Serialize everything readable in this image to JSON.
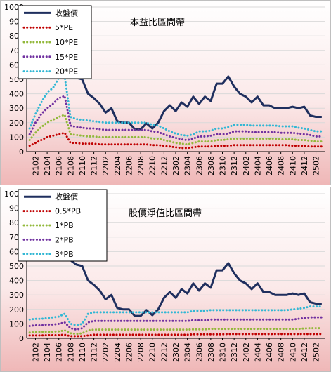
{
  "chart_data": [
    {
      "type": "line",
      "title": "本益比區間帶",
      "ylim": [
        0,
        1000
      ],
      "yticks": [
        "0",
        "100",
        "200",
        "300",
        "400",
        "500",
        "600",
        "700",
        "800",
        "900",
        "1000"
      ],
      "xticks": [
        "2102",
        "2104",
        "2106",
        "2108",
        "2110",
        "2112",
        "2202",
        "2204",
        "2206",
        "2208",
        "2210",
        "2212",
        "2302",
        "2304",
        "2306",
        "2308",
        "2310",
        "2312",
        "2402",
        "2404",
        "2406",
        "2408",
        "2410",
        "2412",
        "2502"
      ],
      "x": [
        "2101",
        "2102",
        "2103",
        "2104",
        "2105",
        "2106",
        "2107",
        "2108",
        "2109",
        "2110",
        "2111",
        "2112",
        "2201",
        "2202",
        "2203",
        "2204",
        "2205",
        "2206",
        "2207",
        "2208",
        "2209",
        "2210",
        "2211",
        "2212",
        "2301",
        "2302",
        "2303",
        "2304",
        "2305",
        "2306",
        "2307",
        "2308",
        "2309",
        "2310",
        "2311",
        "2312",
        "2401",
        "2402",
        "2403",
        "2404",
        "2405",
        "2406",
        "2407",
        "2408",
        "2409",
        "2410",
        "2411",
        "2412",
        "2501",
        "2502",
        "2503"
      ],
      "series": [
        {
          "name": "收盤價",
          "color": "#1f2f5e",
          "style": "solid",
          "values": [
            null,
            null,
            null,
            null,
            null,
            null,
            null,
            540,
            510,
            500,
            400,
            370,
            330,
            270,
            300,
            210,
            200,
            200,
            155,
            155,
            195,
            160,
            200,
            280,
            320,
            280,
            340,
            310,
            380,
            330,
            380,
            350,
            470,
            470,
            520,
            450,
            400,
            380,
            340,
            380,
            320,
            320,
            300,
            300,
            300,
            310,
            300,
            310,
            250,
            240,
            240
          ]
        },
        {
          "name": "5*PE",
          "color": "#c00000",
          "style": "dotted",
          "values": [
            40,
            60,
            80,
            100,
            110,
            120,
            130,
            60,
            60,
            55,
            55,
            55,
            50,
            50,
            50,
            50,
            50,
            50,
            50,
            50,
            50,
            45,
            45,
            40,
            35,
            30,
            25,
            25,
            30,
            35,
            35,
            35,
            40,
            40,
            40,
            45,
            45,
            45,
            45,
            45,
            45,
            45,
            45,
            45,
            45,
            40,
            40,
            40,
            35,
            35,
            35
          ]
        },
        {
          "name": "10*PE",
          "color": "#92b83a",
          "style": "dotted",
          "values": [
            80,
            130,
            170,
            200,
            220,
            240,
            255,
            120,
            115,
            110,
            105,
            105,
            100,
            100,
            100,
            100,
            100,
            100,
            100,
            100,
            100,
            90,
            90,
            80,
            70,
            60,
            55,
            50,
            60,
            70,
            70,
            70,
            80,
            80,
            85,
            90,
            90,
            90,
            90,
            90,
            90,
            90,
            90,
            85,
            85,
            85,
            80,
            80,
            75,
            70,
            70
          ]
        },
        {
          "name": "15*PE",
          "color": "#7030a0",
          "style": "dotted",
          "values": [
            120,
            200,
            260,
            300,
            330,
            370,
            385,
            180,
            170,
            165,
            160,
            160,
            155,
            150,
            150,
            150,
            150,
            150,
            150,
            150,
            150,
            140,
            135,
            120,
            105,
            95,
            85,
            80,
            90,
            105,
            105,
            110,
            120,
            120,
            125,
            140,
            140,
            140,
            135,
            135,
            135,
            135,
            135,
            130,
            130,
            130,
            125,
            120,
            115,
            105,
            105
          ]
        },
        {
          "name": "20*PE",
          "color": "#31b7d4",
          "style": "dotted",
          "values": [
            160,
            260,
            340,
            410,
            440,
            510,
            520,
            240,
            225,
            220,
            215,
            210,
            205,
            200,
            200,
            200,
            200,
            200,
            200,
            200,
            200,
            185,
            180,
            160,
            140,
            125,
            115,
            110,
            120,
            140,
            140,
            145,
            160,
            160,
            170,
            185,
            185,
            185,
            180,
            180,
            180,
            180,
            180,
            175,
            175,
            175,
            165,
            160,
            150,
            140,
            140
          ]
        }
      ]
    },
    {
      "type": "line",
      "title": "股價淨值比區間帶",
      "ylim": [
        0,
        1000
      ],
      "yticks": [
        "0",
        "100",
        "200",
        "300",
        "400",
        "500",
        "600",
        "700",
        "800",
        "900",
        "1000"
      ],
      "xticks": [
        "2102",
        "2104",
        "2106",
        "2108",
        "2110",
        "2112",
        "2202",
        "2204",
        "2206",
        "2208",
        "2210",
        "2212",
        "2302",
        "2304",
        "2306",
        "2308",
        "2310",
        "2312",
        "2402",
        "2404",
        "2406",
        "2408",
        "2410",
        "2412",
        "2502"
      ],
      "x": [
        "2101",
        "2102",
        "2103",
        "2104",
        "2105",
        "2106",
        "2107",
        "2108",
        "2109",
        "2110",
        "2111",
        "2112",
        "2201",
        "2202",
        "2203",
        "2204",
        "2205",
        "2206",
        "2207",
        "2208",
        "2209",
        "2210",
        "2211",
        "2212",
        "2301",
        "2302",
        "2303",
        "2304",
        "2305",
        "2306",
        "2307",
        "2308",
        "2309",
        "2310",
        "2311",
        "2312",
        "2401",
        "2402",
        "2403",
        "2404",
        "2405",
        "2406",
        "2407",
        "2408",
        "2409",
        "2410",
        "2411",
        "2412",
        "2501",
        "2502",
        "2503"
      ],
      "series": [
        {
          "name": "收盤價",
          "color": "#1f2f5e",
          "style": "solid",
          "values": [
            null,
            null,
            null,
            null,
            null,
            null,
            null,
            540,
            510,
            500,
            400,
            370,
            330,
            270,
            300,
            210,
            200,
            200,
            155,
            155,
            195,
            160,
            200,
            280,
            320,
            280,
            340,
            310,
            380,
            330,
            380,
            350,
            470,
            470,
            520,
            450,
            400,
            380,
            340,
            380,
            320,
            320,
            300,
            300,
            300,
            310,
            300,
            310,
            250,
            240,
            240
          ]
        },
        {
          "name": "0.5*PB",
          "color": "#c00000",
          "style": "dotted",
          "values": [
            20,
            20,
            20,
            22,
            22,
            22,
            25,
            15,
            15,
            15,
            20,
            25,
            25,
            25,
            25,
            25,
            25,
            25,
            25,
            25,
            25,
            25,
            25,
            25,
            25,
            25,
            25,
            25,
            28,
            28,
            28,
            28,
            28,
            28,
            30,
            30,
            30,
            30,
            30,
            30,
            30,
            30,
            30,
            30,
            30,
            30,
            30,
            30,
            30,
            30,
            30
          ]
        },
        {
          "name": "1*PB",
          "color": "#92b83a",
          "style": "dotted",
          "values": [
            40,
            42,
            45,
            45,
            46,
            48,
            55,
            35,
            30,
            35,
            55,
            60,
            60,
            60,
            60,
            60,
            60,
            60,
            60,
            60,
            60,
            60,
            60,
            60,
            60,
            60,
            60,
            60,
            62,
            62,
            62,
            65,
            65,
            65,
            65,
            65,
            65,
            65,
            65,
            65,
            65,
            65,
            65,
            65,
            65,
            65,
            65,
            68,
            70,
            70,
            70
          ]
        },
        {
          "name": "2*PB",
          "color": "#7030a0",
          "style": "dotted",
          "values": [
            85,
            90,
            90,
            95,
            95,
            100,
            110,
            70,
            60,
            70,
            110,
            120,
            120,
            120,
            120,
            120,
            120,
            120,
            120,
            120,
            120,
            120,
            120,
            120,
            120,
            120,
            120,
            120,
            125,
            125,
            125,
            130,
            130,
            130,
            130,
            130,
            130,
            130,
            130,
            130,
            130,
            130,
            130,
            130,
            130,
            130,
            135,
            140,
            145,
            145,
            145
          ]
        },
        {
          "name": "3*PB",
          "color": "#31b7d4",
          "style": "dotted",
          "values": [
            130,
            135,
            135,
            140,
            145,
            150,
            170,
            100,
            90,
            100,
            170,
            180,
            180,
            180,
            180,
            180,
            180,
            180,
            180,
            180,
            180,
            180,
            180,
            180,
            180,
            180,
            180,
            180,
            190,
            190,
            190,
            195,
            195,
            195,
            195,
            195,
            195,
            195,
            195,
            195,
            195,
            195,
            195,
            195,
            195,
            200,
            205,
            210,
            220,
            220,
            220
          ]
        }
      ]
    }
  ]
}
